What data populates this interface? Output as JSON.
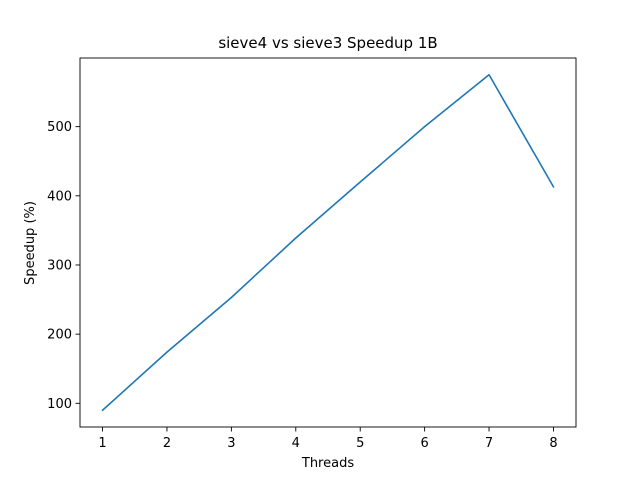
{
  "chart_data": {
    "type": "line",
    "title": "sieve4 vs sieve3 Speedup 1B",
    "xlabel": "Threads",
    "ylabel": "Speedup (%)",
    "x": [
      1,
      2,
      3,
      4,
      5,
      6,
      7,
      8
    ],
    "series": [
      {
        "name": "speedup",
        "color": "#1f77b4",
        "values": [
          90,
          174,
          253,
          339,
          420,
          500,
          575,
          413
        ]
      }
    ],
    "xticks": [
      1,
      2,
      3,
      4,
      5,
      6,
      7,
      8
    ],
    "yticks": [
      100,
      200,
      300,
      400,
      500
    ],
    "xlim": [
      0.65,
      8.35
    ],
    "ylim": [
      65.75,
      599.25
    ],
    "grid": false,
    "legend": "none"
  }
}
